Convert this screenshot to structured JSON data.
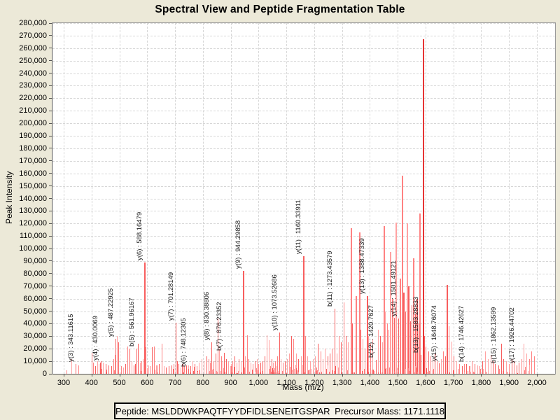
{
  "window": {
    "background": "#ece9d8"
  },
  "chart_data": {
    "type": "bar",
    "subtype": "mass-spectrum-stick-plot",
    "title": "Spectral View and Peptide Fragmentation Table",
    "xlabel": "Mass (m/z)",
    "ylabel": "Peak Intensity",
    "x_axis": {
      "tick_min": 300,
      "tick_max": 2000,
      "tick_step": 100,
      "display_min": 259.8,
      "display_max": 2065.5
    },
    "y_axis": {
      "min": 0,
      "max": 280000,
      "tick_step": 10000
    },
    "grid": "dashed-both-axes",
    "legend": "none",
    "annotations": [
      {
        "ion": "y(3)",
        "label": "y(3) : 343.11615",
        "mz": 343.11615,
        "intensity": 8000
      },
      {
        "ion": "y(4)",
        "label": "y(4) : 430.0069",
        "mz": 430.0069,
        "intensity": 9000
      },
      {
        "ion": "y(5)",
        "label": "y(5) : 487.22925",
        "mz": 487.22925,
        "intensity": 28000
      },
      {
        "ion": "b(5)",
        "label": "b(5) : 561.96167",
        "mz": 561.96167,
        "intensity": 20000
      },
      {
        "ion": "y(6)",
        "label": "y(6) : 588.16479",
        "mz": 588.16479,
        "intensity": 89000
      },
      {
        "ion": "y(7)",
        "label": "y(7) : 701.28149",
        "mz": 701.28149,
        "intensity": 41000
      },
      {
        "ion": "b(6)",
        "label": "b(6) : 748.12305",
        "mz": 748.12305,
        "intensity": 4000
      },
      {
        "ion": "y(8)",
        "label": "y(8) : 830.38806",
        "mz": 830.38806,
        "intensity": 25000
      },
      {
        "ion": "b(7)",
        "label": "b(7) : 876.23352",
        "mz": 876.23352,
        "intensity": 17000
      },
      {
        "ion": "y(9)",
        "label": "y(9) : 944.29858",
        "mz": 944.29858,
        "intensity": 82000
      },
      {
        "ion": "y(10)",
        "label": "y(10) : 1073.52686",
        "mz": 1073.52686,
        "intensity": 33000
      },
      {
        "ion": "y(11)",
        "label": "y(11) : 1160.33911",
        "mz": 1160.33911,
        "intensity": 94000
      },
      {
        "ion": "b(11)",
        "label": "b(11) : 1273.43579",
        "mz": 1273.43579,
        "intensity": 52000
      },
      {
        "ion": "y(13)",
        "label": "y(13) : 1388.47339",
        "mz": 1388.47339,
        "intensity": 62000
      },
      {
        "ion": "b(12)",
        "label": "b(12) : 1420.7627",
        "mz": 1420.7627,
        "intensity": 11000
      },
      {
        "ion": "y(14)",
        "label": "y(14) : 1501.49121",
        "mz": 1501.49121,
        "intensity": 44000
      },
      {
        "ion": "b(13)",
        "label": "b(13) : 1583.28833",
        "mz": 1583.28833,
        "intensity": 15000
      },
      {
        "ion": "y(15)",
        "label": "y(15) : 1648.76074",
        "mz": 1648.76074,
        "intensity": 8500
      },
      {
        "ion": "b(14)",
        "label": "b(14) : 1746.42627",
        "mz": 1746.42627,
        "intensity": 8000
      },
      {
        "ion": "b(15)",
        "label": "b(15) : 1862.13599",
        "mz": 1862.13599,
        "intensity": 7000
      },
      {
        "ion": "y(17)",
        "label": "y(17) : 1926.44702",
        "mz": 1926.44702,
        "intensity": 7000
      }
    ],
    "base_peak": {
      "mz": 1589,
      "intensity": 267000
    },
    "major_peaks": [
      [
        310,
        3000
      ],
      [
        327,
        12000
      ],
      [
        352,
        7000
      ],
      [
        400,
        17000
      ],
      [
        406,
        9000
      ],
      [
        413,
        6000
      ],
      [
        420,
        10000
      ],
      [
        426,
        8000
      ],
      [
        434,
        10000
      ],
      [
        441,
        9000
      ],
      [
        452,
        8000
      ],
      [
        461,
        7000
      ],
      [
        470,
        6000
      ],
      [
        478,
        12000
      ],
      [
        483,
        15000
      ],
      [
        492,
        30000
      ],
      [
        497,
        25000
      ],
      [
        505,
        6000
      ],
      [
        513,
        5000
      ],
      [
        521,
        8000
      ],
      [
        529,
        22000
      ],
      [
        536,
        20000
      ],
      [
        543,
        10000
      ],
      [
        551,
        7000
      ],
      [
        557,
        8000
      ],
      [
        566,
        24000
      ],
      [
        573,
        9000
      ],
      [
        580,
        10000
      ],
      [
        585,
        12000
      ],
      [
        595,
        21000
      ],
      [
        603,
        7000
      ],
      [
        610,
        6000
      ],
      [
        617,
        21000
      ],
      [
        625,
        22000
      ],
      [
        633,
        7000
      ],
      [
        641,
        8000
      ],
      [
        652,
        24000
      ],
      [
        660,
        6000
      ],
      [
        668,
        5000
      ],
      [
        677,
        6000
      ],
      [
        686,
        7000
      ],
      [
        694,
        8000
      ],
      [
        707,
        10000
      ],
      [
        713,
        8000
      ],
      [
        720,
        5000
      ],
      [
        727,
        5000
      ],
      [
        733,
        6000
      ],
      [
        740,
        7000
      ],
      [
        755,
        6000
      ],
      [
        762,
        10000
      ],
      [
        770,
        8000
      ],
      [
        778,
        6000
      ],
      [
        786,
        9000
      ],
      [
        795,
        12000
      ],
      [
        804,
        10000
      ],
      [
        812,
        14000
      ],
      [
        820,
        12000
      ],
      [
        826,
        9000
      ],
      [
        838,
        10000
      ],
      [
        845,
        16000
      ],
      [
        853,
        44000
      ],
      [
        858,
        20000
      ],
      [
        865,
        14000
      ],
      [
        871,
        10000
      ],
      [
        884,
        12000
      ],
      [
        891,
        10000
      ],
      [
        900,
        8000
      ],
      [
        907,
        10000
      ],
      [
        914,
        14000
      ],
      [
        921,
        9000
      ],
      [
        928,
        12000
      ],
      [
        936,
        10000
      ],
      [
        951,
        14000
      ],
      [
        958,
        31000
      ],
      [
        965,
        12000
      ],
      [
        972,
        9000
      ],
      [
        979,
        8000
      ],
      [
        986,
        10000
      ],
      [
        993,
        12000
      ],
      [
        1000,
        8000
      ],
      [
        1007,
        9000
      ],
      [
        1013,
        10000
      ],
      [
        1022,
        14000
      ],
      [
        1029,
        31000
      ],
      [
        1038,
        27000
      ],
      [
        1046,
        12000
      ],
      [
        1053,
        9000
      ],
      [
        1060,
        10000
      ],
      [
        1066,
        14000
      ],
      [
        1080,
        12000
      ],
      [
        1087,
        9000
      ],
      [
        1094,
        10000
      ],
      [
        1101,
        12000
      ],
      [
        1110,
        16000
      ],
      [
        1118,
        30000
      ],
      [
        1126,
        28000
      ],
      [
        1134,
        16000
      ],
      [
        1142,
        12000
      ],
      [
        1152,
        14000
      ],
      [
        1168,
        30000
      ],
      [
        1176,
        14000
      ],
      [
        1185,
        10000
      ],
      [
        1194,
        12000
      ],
      [
        1203,
        14000
      ],
      [
        1214,
        24000
      ],
      [
        1222,
        18000
      ],
      [
        1230,
        12000
      ],
      [
        1239,
        20000
      ],
      [
        1247,
        14000
      ],
      [
        1256,
        16000
      ],
      [
        1264,
        20000
      ],
      [
        1281,
        16000
      ],
      [
        1288,
        30000
      ],
      [
        1295,
        25000
      ],
      [
        1306,
        57000
      ],
      [
        1313,
        30000
      ],
      [
        1320,
        25000
      ],
      [
        1330,
        116000
      ],
      [
        1337,
        40000
      ],
      [
        1348,
        62000
      ],
      [
        1360,
        113000
      ],
      [
        1367,
        35000
      ],
      [
        1374,
        28000
      ],
      [
        1381,
        20000
      ],
      [
        1395,
        30000
      ],
      [
        1402,
        24000
      ],
      [
        1410,
        28000
      ],
      [
        1428,
        35000
      ],
      [
        1436,
        30000
      ],
      [
        1443,
        25000
      ],
      [
        1448,
        118000
      ],
      [
        1455,
        50000
      ],
      [
        1462,
        40000
      ],
      [
        1468,
        35000
      ],
      [
        1473,
        97000
      ],
      [
        1480,
        60000
      ],
      [
        1487,
        45000
      ],
      [
        1493,
        121000
      ],
      [
        1507,
        76000
      ],
      [
        1514,
        158000
      ],
      [
        1520,
        65000
      ],
      [
        1526,
        50000
      ],
      [
        1531,
        120000
      ],
      [
        1538,
        70000
      ],
      [
        1544,
        42000
      ],
      [
        1550,
        55000
      ],
      [
        1556,
        92000
      ],
      [
        1562,
        48000
      ],
      [
        1568,
        60000
      ],
      [
        1574,
        40000
      ],
      [
        1578,
        128000
      ],
      [
        1595,
        30000
      ],
      [
        1601,
        22000
      ],
      [
        1610,
        18000
      ],
      [
        1618,
        14000
      ],
      [
        1626,
        12000
      ],
      [
        1634,
        16000
      ],
      [
        1642,
        10000
      ],
      [
        1656,
        12000
      ],
      [
        1663,
        18000
      ],
      [
        1670,
        14000
      ],
      [
        1676,
        71000
      ],
      [
        1684,
        38000
      ],
      [
        1692,
        26000
      ],
      [
        1700,
        14000
      ],
      [
        1710,
        10000
      ],
      [
        1720,
        8000
      ],
      [
        1730,
        6000
      ],
      [
        1738,
        8000
      ],
      [
        1756,
        6000
      ],
      [
        1765,
        10000
      ],
      [
        1775,
        8000
      ],
      [
        1785,
        7000
      ],
      [
        1795,
        6000
      ],
      [
        1805,
        10000
      ],
      [
        1815,
        18000
      ],
      [
        1824,
        12000
      ],
      [
        1833,
        15000
      ],
      [
        1841,
        10000
      ],
      [
        1850,
        8000
      ],
      [
        1871,
        24000
      ],
      [
        1880,
        12000
      ],
      [
        1890,
        10000
      ],
      [
        1900,
        8000
      ],
      [
        1910,
        12000
      ],
      [
        1918,
        10000
      ],
      [
        1934,
        9000
      ],
      [
        1945,
        12000
      ],
      [
        1953,
        24000
      ],
      [
        1962,
        16000
      ],
      [
        1972,
        12000
      ],
      [
        1981,
        18000
      ],
      [
        1990,
        14000
      ]
    ],
    "noise_texture": {
      "seed": 1337,
      "count": 210,
      "mz_min": 396,
      "mz_max": 1996,
      "intensity_min": 800,
      "intensity_max": 9000
    }
  },
  "colors": {
    "background": "#ece9d8",
    "plot_background": "#ffffff",
    "plot_border": "#9a9a9a",
    "axis": "#555555",
    "grid": "#d7d7d7",
    "peak_light": "#ffa2a2",
    "peak_mid": "#ff8282",
    "peak_strong": "#f85e5e",
    "peak_max": "#e63434",
    "annotation_text": "#1c1c1c"
  },
  "footer": {
    "peptide_label": "Peptide:",
    "peptide_sequence": "MSLDDWKPAQTFYYDFIDLSENEITGSPAR",
    "precursor_label": "Precursor Mass:",
    "precursor_mass": "1171.1118"
  }
}
